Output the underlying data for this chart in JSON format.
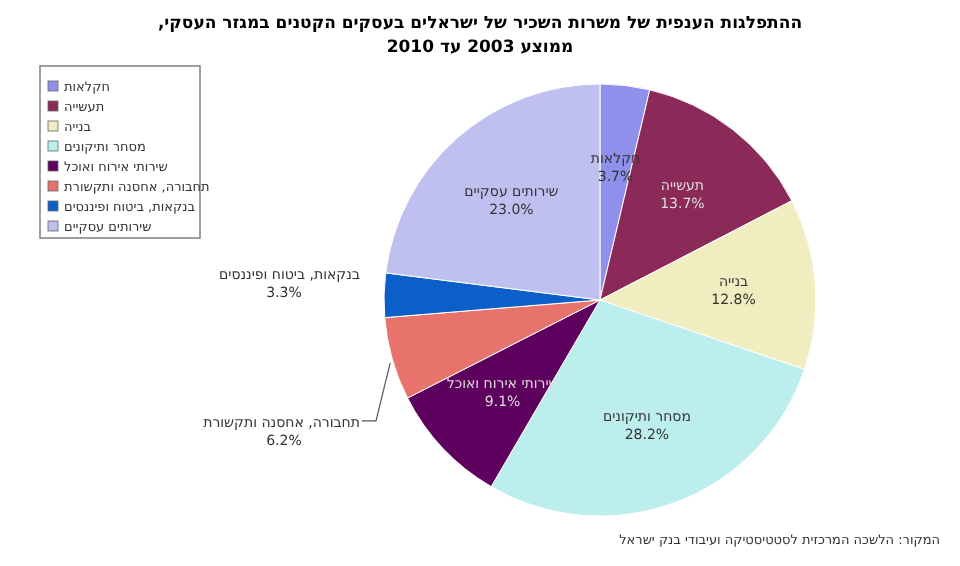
{
  "chart_data": {
    "type": "pie",
    "title": "ההתפלגות הענפית של משרות השכיר של ישראלים בעסקים הקטנים במגזר העסקי,",
    "subtitle": "ממוצע 2003 עד 2010",
    "categories": [
      "חקלאות",
      "תעשייה",
      "בנייה",
      "מסחר ותיקונים",
      "שירותי אירוח ואוכל",
      "תחבורה, אחסנה ותקשורת",
      "בנקאות, ביטוח ופיננסים",
      "שירותים עסקיים"
    ],
    "values": [
      3.7,
      13.7,
      12.8,
      28.2,
      9.1,
      6.2,
      3.3,
      23.0
    ],
    "value_labels": [
      "3.7%",
      "13.7%",
      "12.8%",
      "28.2%",
      "9.1%",
      "6.2%",
      "3.3%",
      "23.0%"
    ],
    "colors": [
      "#8f8fec",
      "#8b2a58",
      "#f0edc0",
      "#bdeeee",
      "#5e005e",
      "#e8736c",
      "#0a60c8",
      "#c0c0f0"
    ],
    "legend": "top left",
    "annotations": [
      "המקור: הלשכה המרכזית לסטטיסטיקה ועיבודי בנק ישראל"
    ]
  }
}
